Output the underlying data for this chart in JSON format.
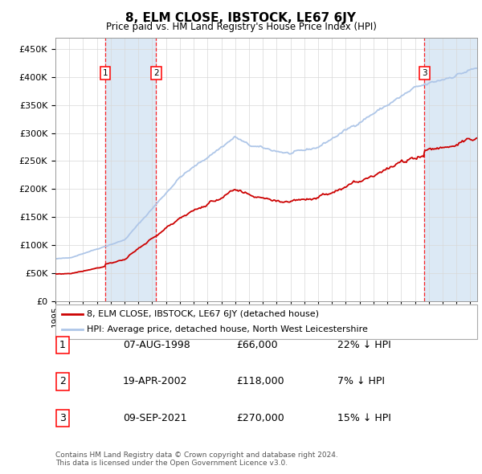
{
  "title": "8, ELM CLOSE, IBSTOCK, LE67 6JY",
  "subtitle": "Price paid vs. HM Land Registry's House Price Index (HPI)",
  "ylim": [
    0,
    470000
  ],
  "yticks": [
    0,
    50000,
    100000,
    150000,
    200000,
    250000,
    300000,
    350000,
    400000,
    450000
  ],
  "xlim_start": 1995.0,
  "xlim_end": 2025.5,
  "sale_dates": [
    1998.6,
    2002.29,
    2021.69
  ],
  "sale_prices": [
    66000,
    118000,
    270000
  ],
  "sale_labels": [
    "1",
    "2",
    "3"
  ],
  "legend_line1": "8, ELM CLOSE, IBSTOCK, LE67 6JY (detached house)",
  "legend_line2": "HPI: Average price, detached house, North West Leicestershire",
  "table_data": [
    [
      "1",
      "07-AUG-1998",
      "£66,000",
      "22% ↓ HPI"
    ],
    [
      "2",
      "19-APR-2002",
      "£118,000",
      "7% ↓ HPI"
    ],
    [
      "3",
      "09-SEP-2021",
      "£270,000",
      "15% ↓ HPI"
    ]
  ],
  "footer": "Contains HM Land Registry data © Crown copyright and database right 2024.\nThis data is licensed under the Open Government Licence v3.0.",
  "hpi_color": "#aec6e8",
  "sale_color": "#cc0000",
  "shade_color": "#dce9f5"
}
